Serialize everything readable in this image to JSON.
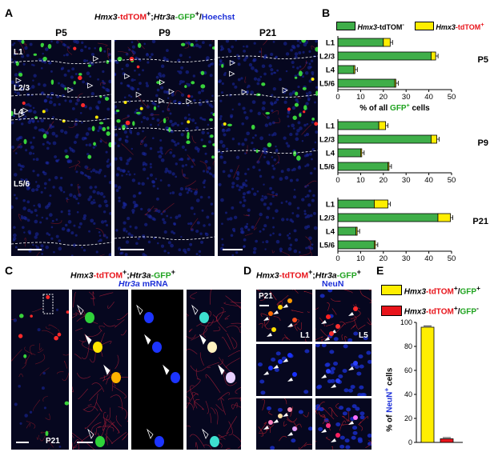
{
  "panel_labels": {
    "a": "A",
    "b": "B",
    "c": "C",
    "d": "D",
    "e": "E"
  },
  "panel_a": {
    "title": {
      "gene1": "Hmx3",
      "marker1": "-tdTOM",
      "sup1": "+",
      "sep1": ";",
      "gene2": "Htr3a",
      "marker2": "-GFP",
      "sup2": "+",
      "sep2": "/",
      "stain": "Hoechst"
    },
    "columns": [
      "P5",
      "P9",
      "P21"
    ],
    "layers": [
      "L1",
      "L2/3",
      "L4",
      "L5/6"
    ]
  },
  "panel_b": {
    "legend": [
      {
        "gene": "Hmx3",
        "suffix": "-tdTOM",
        "sup": "-",
        "color": "#3fae49"
      },
      {
        "gene": "Hmx3",
        "suffix": "-tdTOM",
        "sup": "+",
        "color": "#ffee00"
      }
    ],
    "xlabel_prefix": "% of all ",
    "xlabel_gfp": "GFP",
    "xlabel_sup": "+",
    "xlabel_suffix": " cells"
  },
  "chart_data": {
    "type": "bar",
    "orientation": "horizontal",
    "stacked": true,
    "categories": [
      "L1",
      "L2/3",
      "L4",
      "L5/6"
    ],
    "xlim": [
      0,
      50
    ],
    "xticks": [
      0,
      10,
      20,
      30,
      40,
      50
    ],
    "groups": [
      {
        "name": "P5",
        "tdtom_neg": [
          20,
          41,
          7,
          25
        ],
        "tdtom_pos": [
          3,
          2,
          0.5,
          0.5
        ]
      },
      {
        "name": "P9",
        "tdtom_neg": [
          18,
          41,
          10,
          22
        ],
        "tdtom_pos": [
          3,
          2.5,
          0.5,
          0.5
        ]
      },
      {
        "name": "P21",
        "tdtom_neg": [
          16,
          44,
          8,
          16
        ],
        "tdtom_pos": [
          6,
          5.5,
          0.5,
          0.5
        ]
      }
    ]
  },
  "panel_c": {
    "title": {
      "gene1": "Hmx3",
      "marker1": "-tdTOM",
      "sup1": "+",
      "sep1": ";",
      "gene2": "Htr3a",
      "marker2": "-GFP",
      "sup2": "+",
      "mrna_gene": "Htr3a",
      "mrna": " mRNA"
    },
    "age": "P21"
  },
  "panel_d": {
    "title": {
      "gene1": "Hmx3",
      "marker1": "-tdTOM",
      "sup1": "+",
      "sep1": ";",
      "gene2": "Htr3a",
      "marker2": "-GFP",
      "sup2": "+",
      "stain": "NeuN"
    },
    "age": "P21",
    "layer_left": "L1",
    "layer_right": "L5"
  },
  "panel_e": {
    "legend": [
      {
        "gene": "Hmx3",
        "m1": "-tdTOM",
        "s1": "+",
        "slash": "/",
        "m2": "GFP",
        "s2": "+",
        "color": "#ffee00"
      },
      {
        "gene": "Hmx3",
        "m1": "-tdTOM",
        "s1": "+",
        "slash": "/",
        "m2": "GFP",
        "s2": "-",
        "color": "#e8141b"
      }
    ],
    "ylabel_prefix": "% of ",
    "ylabel_neun": "NeuN",
    "ylabel_sup": "+",
    "ylabel_suffix": " cells",
    "chart_data": {
      "type": "bar",
      "categories": [
        "tdTOM+/GFP+",
        "tdTOM+/GFP-"
      ],
      "values": [
        96,
        3
      ],
      "ylim": [
        0,
        100
      ],
      "yticks": [
        0,
        20,
        40,
        60,
        80,
        100
      ]
    }
  }
}
